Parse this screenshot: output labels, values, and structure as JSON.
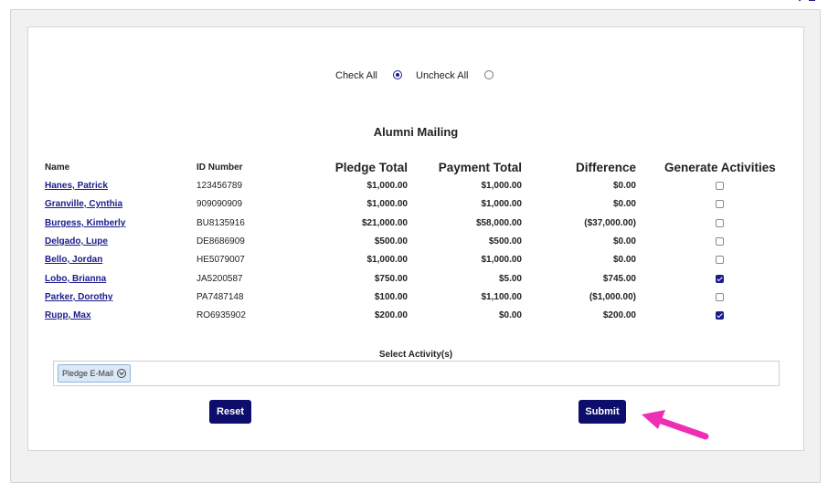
{
  "form": {
    "check_all_label": "Check All",
    "uncheck_all_label": "Uncheck All",
    "title": "Alumni Mailing"
  },
  "table": {
    "headers": {
      "name": "Name",
      "id": "ID Number",
      "pledge": "Pledge Total",
      "payment": "Payment Total",
      "difference": "Difference",
      "generate": "Generate Activities"
    },
    "rows": [
      {
        "name": "Hanes, Patrick",
        "id": "123456789",
        "pledge": "$1,000.00",
        "payment": "$1,000.00",
        "difference": "$0.00",
        "generate": false
      },
      {
        "name": "Granville, Cynthia",
        "id": "909090909",
        "pledge": "$1,000.00",
        "payment": "$1,000.00",
        "difference": "$0.00",
        "generate": false
      },
      {
        "name": "Burgess, Kimberly",
        "id": "BU8135916",
        "pledge": "$21,000.00",
        "payment": "$58,000.00",
        "difference": "($37,000.00)",
        "generate": false
      },
      {
        "name": "Delgado, Lupe",
        "id": "DE8686909",
        "pledge": "$500.00",
        "payment": "$500.00",
        "difference": "$0.00",
        "generate": false
      },
      {
        "name": "Bello, Jordan",
        "id": "HE5079007",
        "pledge": "$1,000.00",
        "payment": "$1,000.00",
        "difference": "$0.00",
        "generate": false
      },
      {
        "name": "Lobo, Brianna",
        "id": "JA5200587",
        "pledge": "$750.00",
        "payment": "$5.00",
        "difference": "$745.00",
        "generate": true
      },
      {
        "name": "Parker, Dorothy",
        "id": "PA7487148",
        "pledge": "$100.00",
        "payment": "$1,100.00",
        "difference": "($1,000.00)",
        "generate": false
      },
      {
        "name": "Rupp, Max",
        "id": "RO6935902",
        "pledge": "$200.00",
        "payment": "$0.00",
        "difference": "$200.00",
        "generate": true
      }
    ]
  },
  "activity": {
    "label": "Select Activity(s)",
    "selected": [
      "Pledge E-Mail"
    ]
  },
  "buttons": {
    "reset": "Reset",
    "submit": "Submit"
  },
  "colors": {
    "accent": "#0d0d6b",
    "link": "#1a1a8c",
    "annotation_arrow": "#ee2fb4"
  }
}
